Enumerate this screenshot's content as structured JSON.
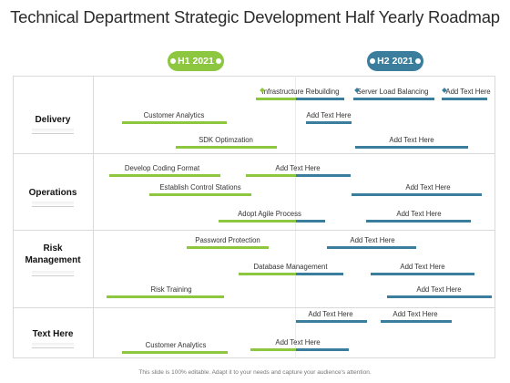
{
  "title": "Technical Department Strategic Development Half Yearly Roadmap",
  "periods": {
    "h1": "H1 2021",
    "h2": "H2 2021"
  },
  "rows": {
    "delivery": "Delivery",
    "operations": "Operations",
    "risk": "Risk Management",
    "text_here": "Text Here"
  },
  "colors": {
    "h1": "#8dc63f",
    "h2": "#3a7d9c"
  },
  "tasks": {
    "infra": "Infrastructure Rebuilding",
    "server_lb": "Server Load Balancing",
    "add_text_d1": "Add Text Here",
    "customer_analytics_1": "Customer Analytics",
    "add_text_d2": "Add Text Here",
    "sdk": "SDK Optimzation",
    "add_text_d3": "Add Text Here",
    "coding_format": "Develop Coding Format",
    "add_text_o1": "Add Text Here",
    "control_stations": "Establish Control Stations",
    "add_text_o2": "Add Text Here",
    "agile": "Adopt Agile Process",
    "add_text_o3": "Add Text Here",
    "password": "Password Protection",
    "add_text_r1": "Add Text Here",
    "db_mgmt": "Database Management",
    "add_text_r2": "Add Text Here",
    "risk_training": "Risk Training",
    "add_text_r3": "Add Text Here",
    "add_text_t1": "Add Text Here",
    "add_text_t2": "Add Text Here",
    "customer_analytics_2": "Customer Analytics",
    "add_text_t3": "Add Text Here"
  },
  "footer": "This slide is 100% editable. Adapt it to your needs and capture your audience's attention."
}
